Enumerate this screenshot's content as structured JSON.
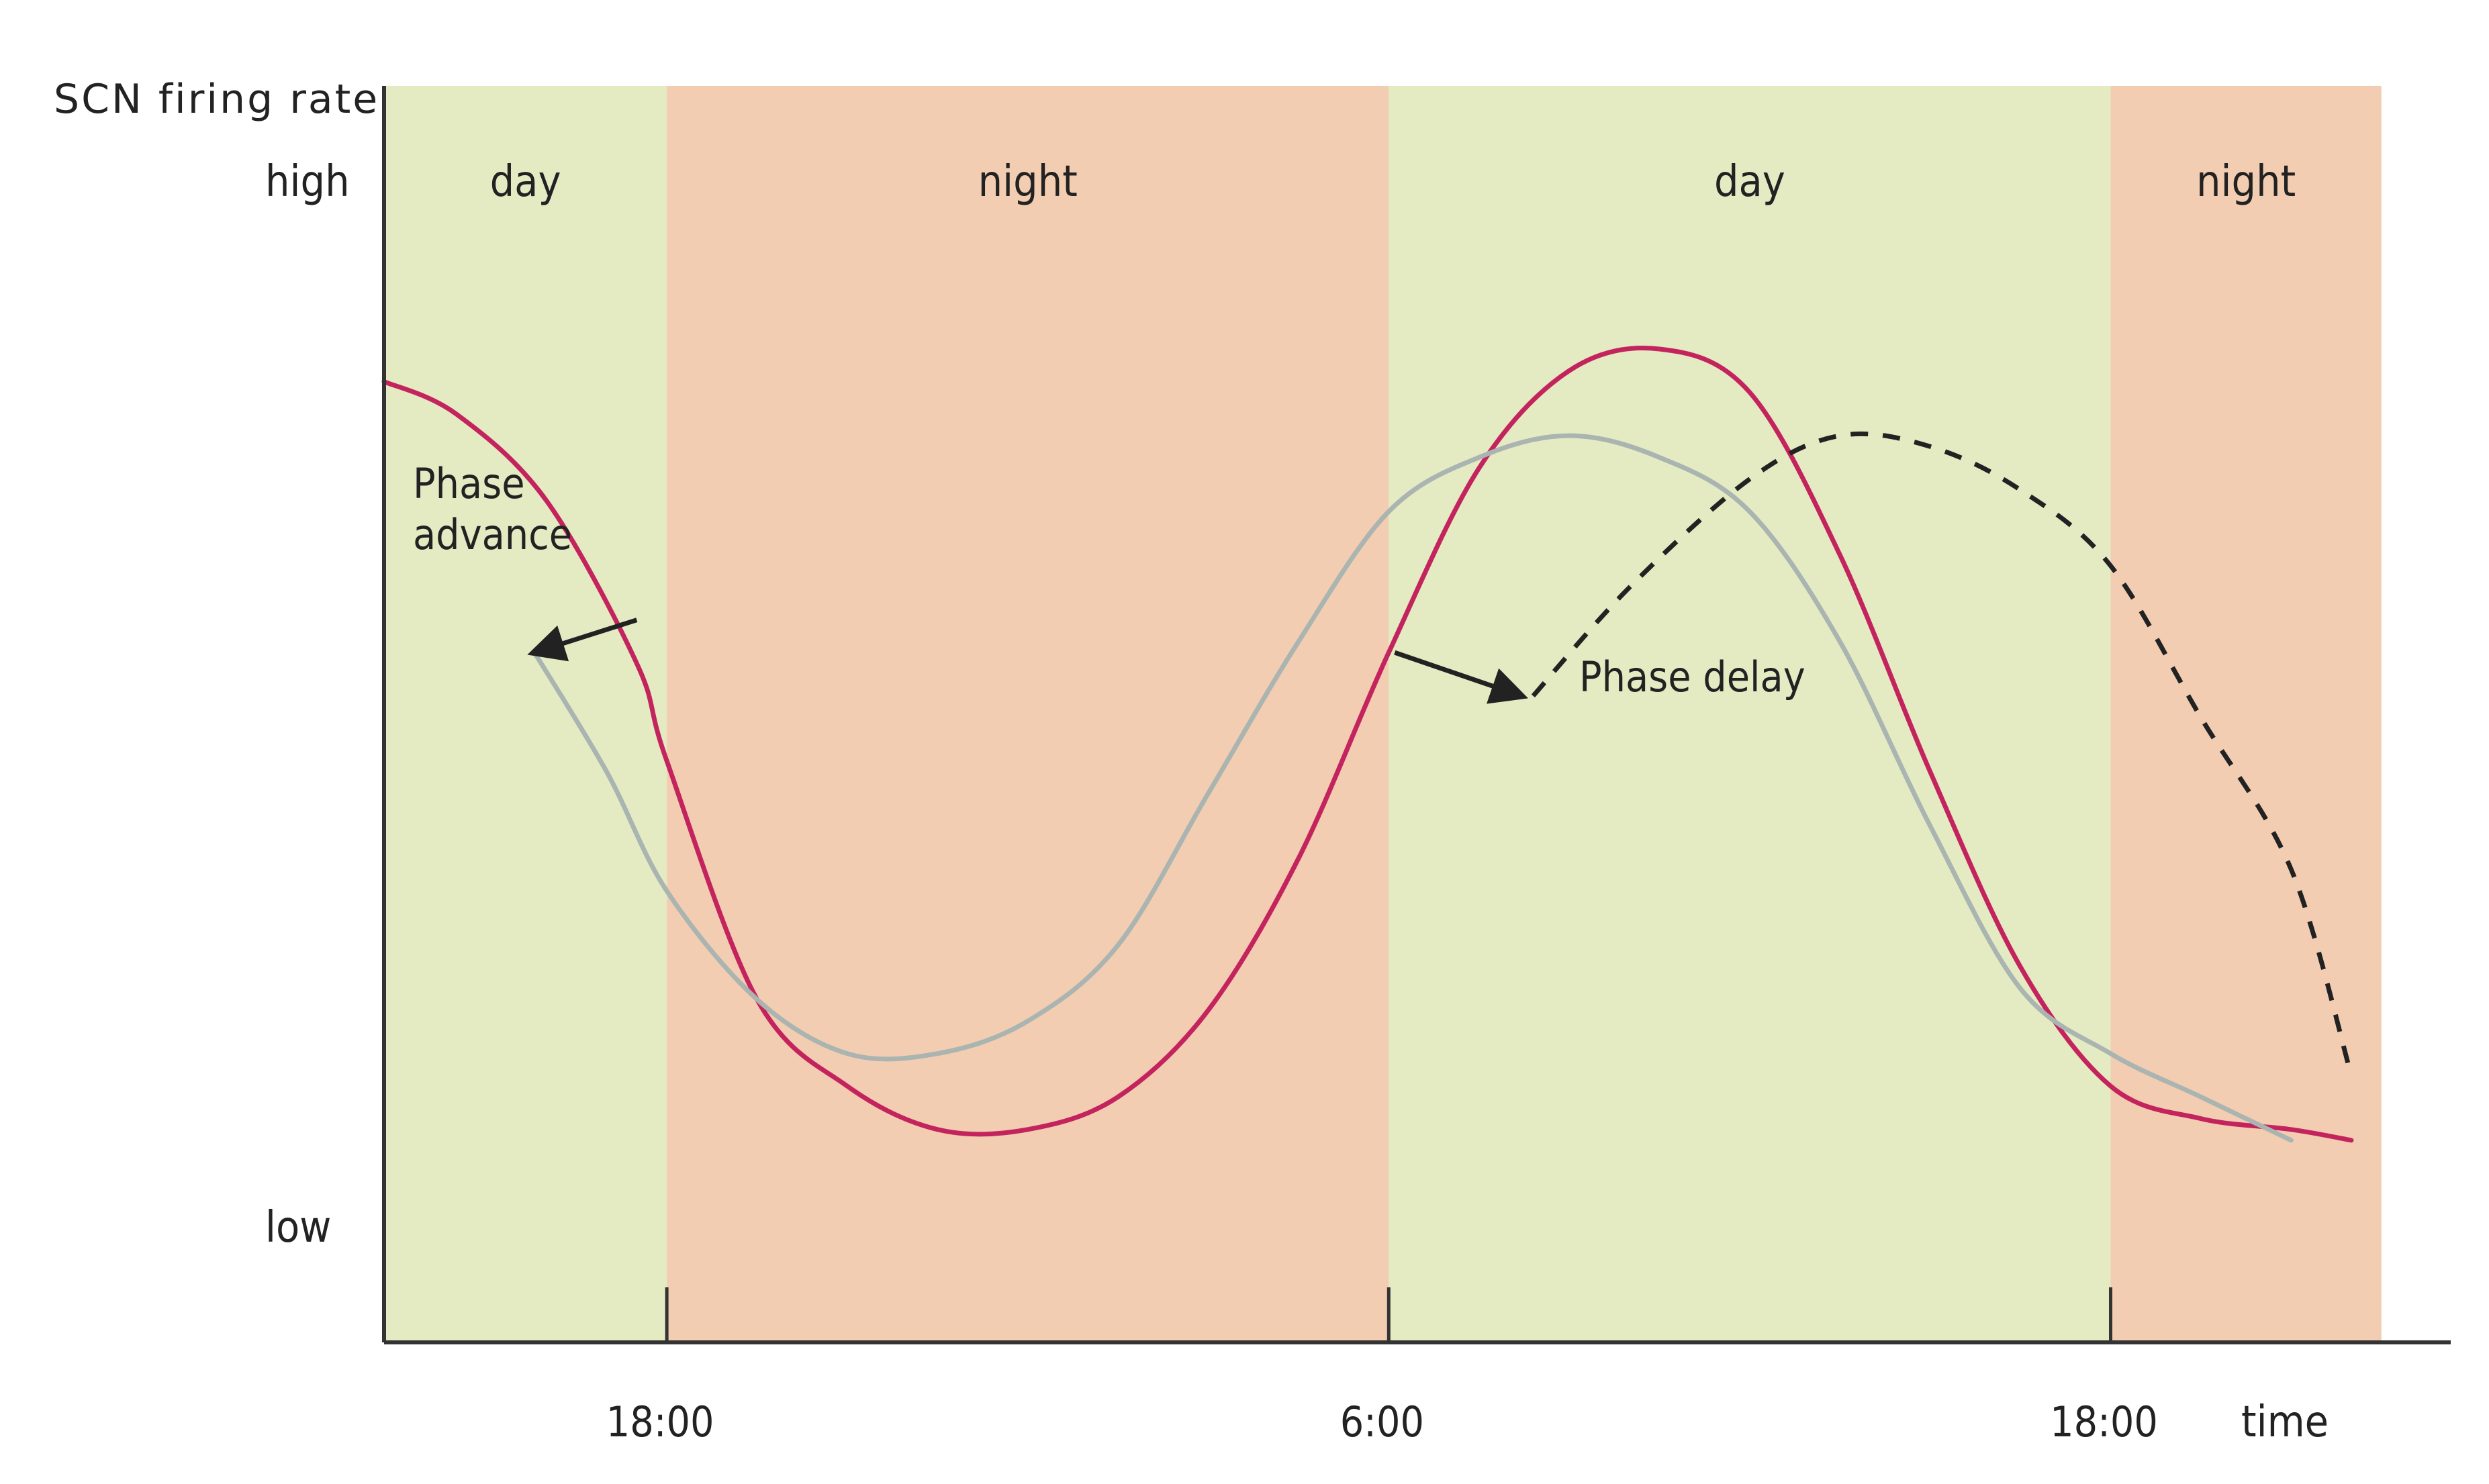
{
  "chart_data": {
    "type": "line",
    "ylabel": "SCN firing rate",
    "xlabel": "time",
    "y_tick_labels": [
      "high",
      "low"
    ],
    "x_ticks": [
      {
        "label": "18:00",
        "hour": 18
      },
      {
        "label": "6:00",
        "hour": 30
      },
      {
        "label": "18:00",
        "hour": 42
      }
    ],
    "xlim": [
      13.3,
      46.5
    ],
    "ylim": [
      0,
      1
    ],
    "grid": false,
    "legend": "none",
    "bands": [
      {
        "label": "day",
        "start": 13.3,
        "end": 18,
        "color": "#e4ebc3"
      },
      {
        "label": "night",
        "start": 18,
        "end": 30,
        "color": "#f3cdb1"
      },
      {
        "label": "day",
        "start": 30,
        "end": 42,
        "color": "#e4ebc3"
      },
      {
        "label": "night",
        "start": 42,
        "end": 46.5,
        "color": "#f3cdb1"
      }
    ],
    "series": [
      {
        "style": "solid",
        "color": "#c4245e",
        "x": [
          13.3,
          14.5,
          16,
          17.5,
          18,
          19.5,
          21,
          22.5,
          24,
          25.5,
          27,
          28.5,
          30,
          31.5,
          33,
          34.5,
          36,
          37.5,
          39,
          40.5,
          42,
          43.5,
          45,
          46
        ]
      },
      {
        "style": "solid",
        "color": "#aab4b0",
        "x": [
          15.8,
          17,
          18,
          19.5,
          21,
          22.5,
          24,
          25.5,
          27,
          28.5,
          30,
          31.5,
          33,
          34.5,
          36,
          37.5,
          39,
          40.5,
          42,
          43.5,
          45
        ]
      },
      {
        "style": "dashed",
        "color": "#222222",
        "x": [
          32.4,
          34,
          36,
          37.5,
          39,
          40.5,
          42,
          43.5,
          45,
          46
        ]
      }
    ],
    "annotations": [
      {
        "text": "Phase",
        "line2": "advance",
        "arrow_from": [
          17.5,
          0.62
        ],
        "arrow_to": [
          15.8,
          0.59
        ]
      },
      {
        "text": "Phase delay",
        "arrow_from": [
          30.1,
          0.59
        ],
        "arrow_to": [
          32.2,
          0.55
        ]
      }
    ]
  }
}
